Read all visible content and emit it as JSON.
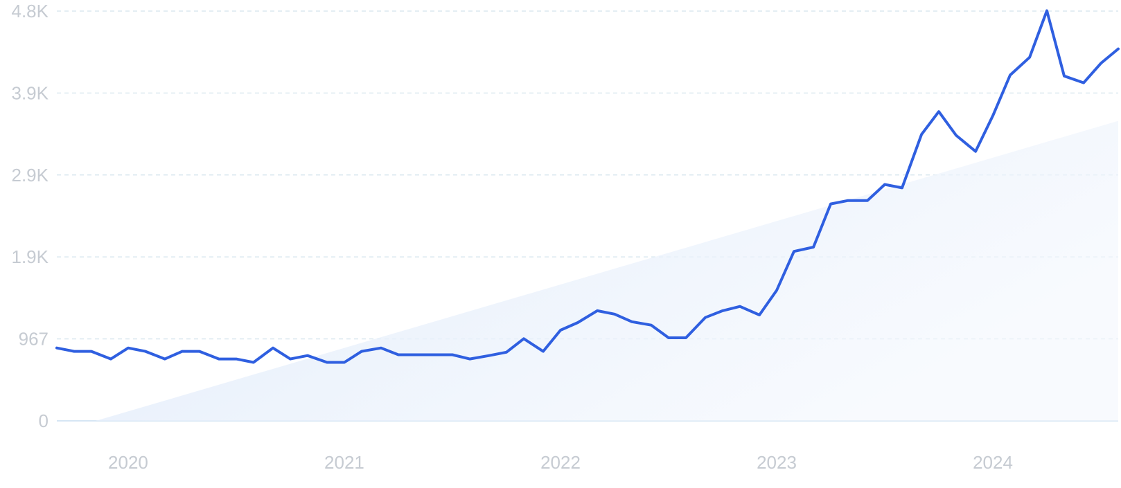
{
  "chart_data": {
    "type": "line",
    "title": "",
    "xlabel": "",
    "ylabel": "",
    "x_range": [
      2019.67,
      2024.58
    ],
    "ylim": [
      0,
      4800
    ],
    "y_ticks": [
      {
        "value": 0,
        "label": "0"
      },
      {
        "value": 967,
        "label": "967"
      },
      {
        "value": 1935,
        "label": "1.9K"
      },
      {
        "value": 2902,
        "label": "2.9K"
      },
      {
        "value": 3869,
        "label": "3.9K"
      },
      {
        "value": 4836,
        "label": "4.8K"
      }
    ],
    "x_ticks": [
      {
        "value": 2020,
        "label": "2020"
      },
      {
        "value": 2021,
        "label": "2021"
      },
      {
        "value": 2022,
        "label": "2022"
      },
      {
        "value": 2023,
        "label": "2023"
      },
      {
        "value": 2024,
        "label": "2024"
      }
    ],
    "grid": true,
    "legend": "none",
    "series": [
      {
        "color": "#2f5fe0",
        "x": [
          2019.67,
          2019.75,
          2019.83,
          2019.92,
          2020.0,
          2020.08,
          2020.17,
          2020.25,
          2020.33,
          2020.42,
          2020.5,
          2020.58,
          2020.67,
          2020.75,
          2020.83,
          2020.92,
          2021.0,
          2021.08,
          2021.17,
          2021.25,
          2021.33,
          2021.42,
          2021.5,
          2021.58,
          2021.67,
          2021.75,
          2021.83,
          2021.92,
          2022.0,
          2022.08,
          2022.17,
          2022.25,
          2022.33,
          2022.42,
          2022.5,
          2022.58,
          2022.67,
          2022.75,
          2022.83,
          2022.92,
          2023.0,
          2023.08,
          2023.17,
          2023.25,
          2023.33,
          2023.42,
          2023.5,
          2023.58,
          2023.67,
          2023.75,
          2023.83,
          2023.92,
          2024.0,
          2024.08,
          2024.17,
          2024.25,
          2024.33,
          2024.42,
          2024.5,
          2024.58
        ],
        "y": [
          860,
          820,
          820,
          730,
          860,
          820,
          730,
          820,
          820,
          730,
          730,
          690,
          860,
          730,
          770,
          690,
          690,
          820,
          860,
          780,
          780,
          780,
          780,
          730,
          770,
          810,
          970,
          820,
          1070,
          1160,
          1300,
          1260,
          1170,
          1130,
          980,
          980,
          1220,
          1300,
          1350,
          1250,
          1540,
          2000,
          2050,
          2560,
          2600,
          2600,
          2790,
          2750,
          3380,
          3650,
          3370,
          3180,
          3600,
          4080,
          4290,
          4840,
          4070,
          3990,
          4220,
          4390
        ]
      }
    ],
    "trend": {
      "type": "area",
      "x": [
        2019.85,
        2024.58
      ],
      "y": [
        0,
        3540
      ]
    }
  }
}
